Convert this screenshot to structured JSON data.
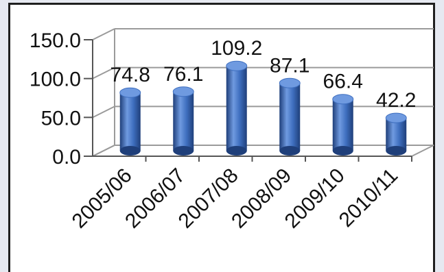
{
  "chart_data": {
    "type": "bar",
    "title": "",
    "xlabel": "",
    "ylabel": "",
    "categories": [
      "2005/06",
      "2006/07",
      "2007/08",
      "2008/09",
      "2009/10",
      "2010/11"
    ],
    "values": [
      74.8,
      76.1,
      109.2,
      87.1,
      66.4,
      42.2
    ],
    "value_labels": [
      "74.8",
      "76.1",
      "109.2",
      "87.1",
      "66.4",
      "42.2"
    ],
    "y_ticks": [
      "0.0",
      "50.0",
      "100.0",
      "150.0"
    ],
    "ylim": [
      0,
      150
    ],
    "grid": true,
    "legend": "none",
    "style": "3d-cylinder",
    "bar_color": "#3f6fbf",
    "bar_shade_color": "#1f3f7a",
    "bar_highlight_color": "#6f9ae0"
  }
}
